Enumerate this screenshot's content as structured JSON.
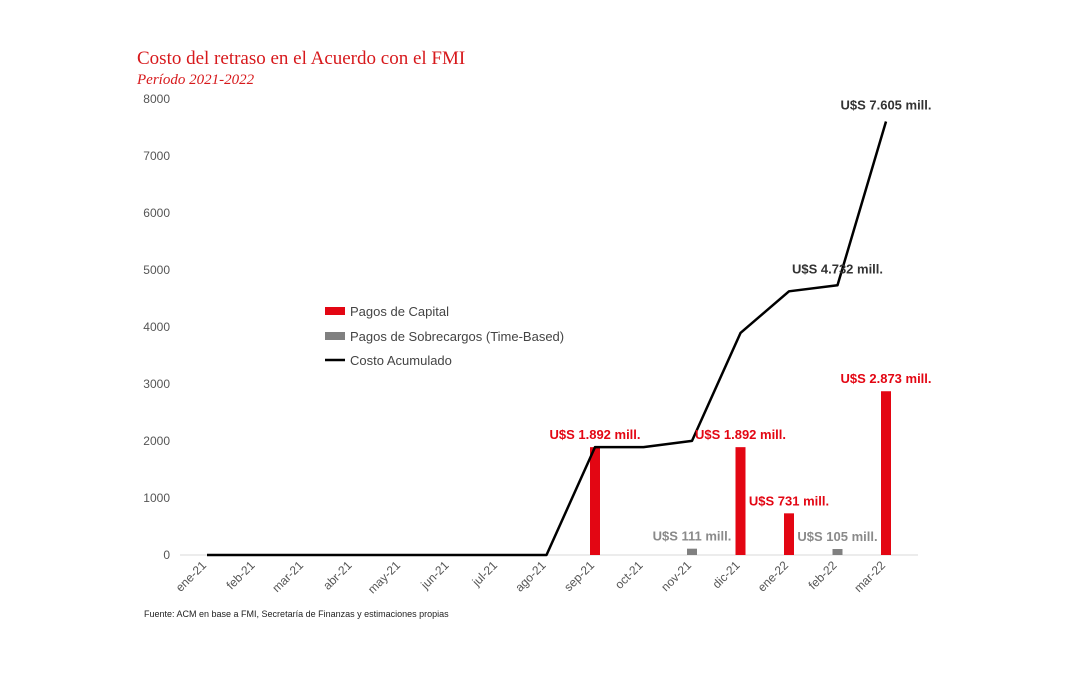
{
  "title": "Costo del retraso en el Acuerdo con el FMI",
  "subtitle": "Período 2021-2022",
  "source": "Fuente: ACM en base a FMI, Secretaría de Finanzas y estimaciones propias",
  "colors": {
    "capital": "#e30613",
    "sobrecargos": "#808080",
    "acumulado": "#000000",
    "label_dark": "#333333",
    "label_grey": "#8a8a8a"
  },
  "chart_data": {
    "type": "bar",
    "categories": [
      "ene-21",
      "feb-21",
      "mar-21",
      "abr-21",
      "may-21",
      "jun-21",
      "jul-21",
      "ago-21",
      "sep-21",
      "oct-21",
      "nov-21",
      "dic-21",
      "ene-22",
      "feb-22",
      "mar-22"
    ],
    "ylim": [
      0,
      8000
    ],
    "yticks": [
      0,
      1000,
      2000,
      3000,
      4000,
      5000,
      6000,
      7000,
      8000
    ],
    "grid": false,
    "legend_position": "center-left",
    "series": [
      {
        "name": "Pagos de Capital",
        "type": "bar",
        "values": [
          0,
          0,
          0,
          0,
          0,
          0,
          0,
          0,
          1892,
          0,
          0,
          1892,
          731,
          0,
          2873
        ]
      },
      {
        "name": "Pagos de Sobrecargos (Time-Based)",
        "type": "bar",
        "values": [
          0,
          0,
          0,
          0,
          0,
          0,
          0,
          0,
          0,
          0,
          111,
          0,
          0,
          105,
          0
        ]
      },
      {
        "name": "Costo Acumulado",
        "type": "line",
        "values": [
          0,
          0,
          0,
          0,
          0,
          0,
          0,
          0,
          1892,
          1892,
          2003,
          3895,
          4626,
          4732,
          7605
        ]
      }
    ],
    "annotations": [
      {
        "text": "U$S 1.892 mill.",
        "category": "sep-21",
        "series": "Pagos de Capital"
      },
      {
        "text": "U$S 1.892 mill.",
        "category": "dic-21",
        "series": "Pagos de Capital"
      },
      {
        "text": "U$S 731 mill.",
        "category": "ene-22",
        "series": "Pagos de Capital"
      },
      {
        "text": "U$S 2.873 mill.",
        "category": "mar-22",
        "series": "Pagos de Capital"
      },
      {
        "text": "U$S 111 mill.",
        "category": "nov-21",
        "series": "Pagos de Sobrecargos (Time-Based)"
      },
      {
        "text": "U$S 105 mill.",
        "category": "feb-22",
        "series": "Pagos de Sobrecargos (Time-Based)"
      },
      {
        "text": "U$S 4.732 mill.",
        "category": "feb-22",
        "series": "Costo Acumulado"
      },
      {
        "text": "U$S 7.605 mill.",
        "category": "mar-22",
        "series": "Costo Acumulado"
      }
    ]
  }
}
